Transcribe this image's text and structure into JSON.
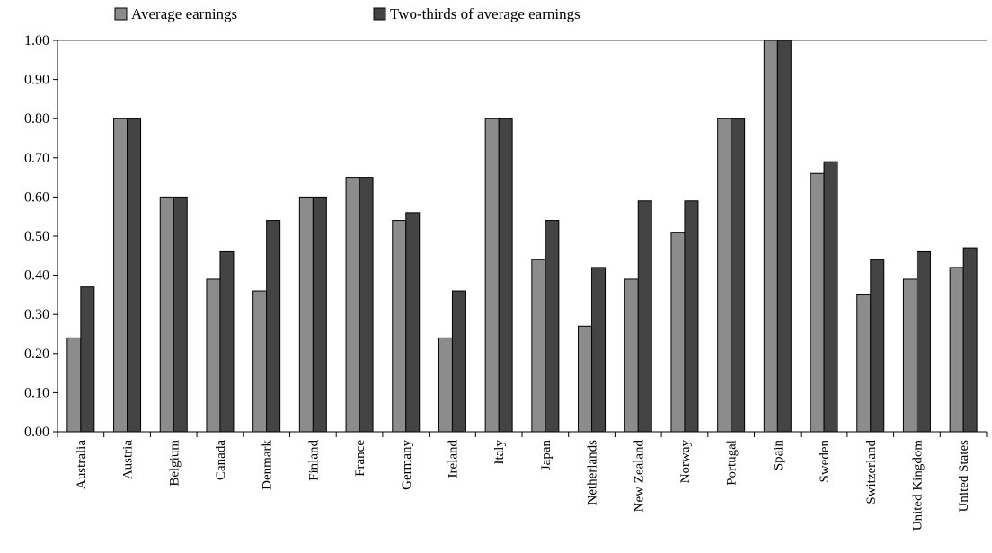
{
  "chart_data": {
    "type": "bar",
    "categories": [
      "Australia",
      "Austria",
      "Belgium",
      "Canada",
      "Denmark",
      "Finland",
      "France",
      "Germany",
      "Ireland",
      "Italy",
      "Japan",
      "Netherlands",
      "New Zealand",
      "Norway",
      "Portugal",
      "Spain",
      "Sweden",
      "Switzerland",
      "United Kingdom",
      "United States"
    ],
    "series": [
      {
        "name": "Average earnings",
        "color": "#8c8c8c",
        "values": [
          0.24,
          0.8,
          0.6,
          0.39,
          0.36,
          0.6,
          0.65,
          0.54,
          0.24,
          0.8,
          0.44,
          0.27,
          0.39,
          0.51,
          0.8,
          1.0,
          0.66,
          0.35,
          0.39,
          0.42
        ]
      },
      {
        "name": "Two-thirds of average earnings",
        "color": "#444444",
        "values": [
          0.37,
          0.8,
          0.6,
          0.46,
          0.54,
          0.6,
          0.65,
          0.56,
          0.36,
          0.8,
          0.54,
          0.42,
          0.59,
          0.59,
          0.8,
          1.0,
          0.69,
          0.44,
          0.46,
          0.47
        ]
      }
    ],
    "yticks": [
      "0.00",
      "0.10",
      "0.20",
      "0.30",
      "0.40",
      "0.50",
      "0.60",
      "0.70",
      "0.80",
      "0.90",
      "1.00"
    ],
    "ylim": [
      0,
      1.0
    ],
    "title": "",
    "xlabel": "",
    "ylabel": "",
    "legend_position": "top",
    "grid": false
  }
}
